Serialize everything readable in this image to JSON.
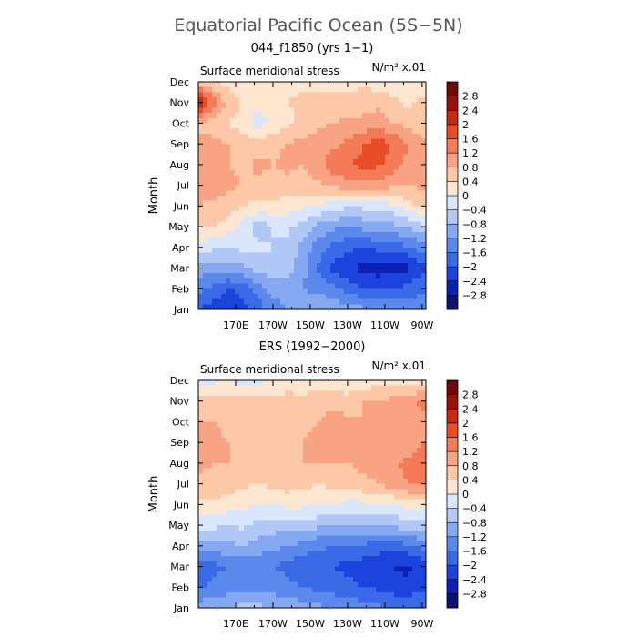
{
  "figure": {
    "title": "Equatorial Pacific Ocean (5S−5N)"
  },
  "palette": {
    "levels": [
      -2.8,
      -2.4,
      -2.0,
      -1.6,
      -1.2,
      -0.8,
      -0.4,
      0,
      0.4,
      0.8,
      1.2,
      1.6,
      2.0,
      2.4,
      2.8
    ],
    "level_labels": [
      "−2.8",
      "−2.4",
      "−2",
      "−1.6",
      "−1.2",
      "−0.8",
      "−0.4",
      "0",
      "0.4",
      "0.8",
      "1.2",
      "1.6",
      "2",
      "2.4",
      "2.8"
    ],
    "colors": [
      "#0a1272",
      "#0b21b6",
      "#1c44dd",
      "#3a6ae6",
      "#5b88eb",
      "#86a8f0",
      "#b1c7f6",
      "#dae6fb",
      "#fde6cf",
      "#fcc8a8",
      "#f8a383",
      "#f37b57",
      "#e84d27",
      "#c72a10",
      "#97100a",
      "#6e0707"
    ]
  },
  "chart_data": [
    {
      "type": "heatmap",
      "title": "044_f1850 (yrs 1−1)",
      "subtitle": "Surface meridional stress",
      "units_label": "N/m² x.01",
      "ylabel": "Month",
      "y_ticks": [
        "Jan",
        "Feb",
        "Mar",
        "Apr",
        "May",
        "Jun",
        "Jul",
        "Aug",
        "Sep",
        "Oct",
        "Nov",
        "Dec"
      ],
      "x_ticks": [
        "170E",
        "170W",
        "150W",
        "130W",
        "110W",
        "90W"
      ],
      "x_tick_lon": [
        170,
        190,
        210,
        230,
        250,
        270
      ],
      "xlim": [
        150,
        272
      ],
      "x_lon": [
        150,
        158,
        166,
        174,
        182,
        190,
        198,
        206,
        214,
        222,
        230,
        238,
        246,
        254,
        262,
        270
      ],
      "values": [
        [
          -2.0,
          -2.2,
          -2.4,
          -2.1,
          -1.8,
          -1.4,
          -1.2,
          -1.0,
          -0.8,
          -0.9,
          -1.0,
          -1.1,
          -1.2,
          -1.3,
          -1.4,
          -1.3
        ],
        [
          -1.4,
          -1.7,
          -2.0,
          -1.9,
          -1.4,
          -1.0,
          -1.0,
          -1.2,
          -1.3,
          -1.5,
          -1.8,
          -2.0,
          -2.1,
          -2.0,
          -1.9,
          -1.7
        ],
        [
          -1.0,
          -1.1,
          -1.0,
          -0.9,
          -0.6,
          -0.5,
          -0.6,
          -1.1,
          -1.6,
          -2.1,
          -2.4,
          -2.5,
          -2.6,
          -2.6,
          -2.5,
          -2.1
        ],
        [
          -0.2,
          -0.3,
          -0.4,
          -0.3,
          -0.3,
          -0.4,
          -0.5,
          -0.9,
          -1.4,
          -1.7,
          -1.9,
          -2.0,
          -1.9,
          -1.8,
          -1.7,
          -1.4
        ],
        [
          0.5,
          0.4,
          0.2,
          -0.2,
          -0.6,
          -0.4,
          -0.3,
          -0.6,
          -0.9,
          -1.1,
          -1.2,
          -1.1,
          -1.0,
          -0.9,
          -0.8,
          -0.5
        ],
        [
          0.8,
          0.7,
          0.6,
          0.4,
          0.3,
          0.3,
          0.2,
          0.1,
          0.0,
          -0.2,
          -0.3,
          -0.3,
          -0.2,
          -0.1,
          0.2,
          0.5
        ],
        [
          1.0,
          1.0,
          0.9,
          0.8,
          0.7,
          0.6,
          0.7,
          0.6,
          0.7,
          0.9,
          1.0,
          1.1,
          1.0,
          0.9,
          0.8,
          0.9
        ],
        [
          1.1,
          1.0,
          0.8,
          0.7,
          0.9,
          0.8,
          0.9,
          0.8,
          1.1,
          1.4,
          1.6,
          1.7,
          1.7,
          1.4,
          1.1,
          1.0
        ],
        [
          1.0,
          0.9,
          0.8,
          0.6,
          0.6,
          0.7,
          0.8,
          0.9,
          1.0,
          1.1,
          1.3,
          1.6,
          1.8,
          1.6,
          1.2,
          0.9
        ],
        [
          0.7,
          0.6,
          0.4,
          0.2,
          -0.2,
          0.1,
          0.3,
          0.5,
          0.7,
          0.8,
          0.9,
          0.9,
          1.0,
          0.8,
          0.7,
          0.5
        ],
        [
          2.6,
          1.4,
          0.6,
          0.4,
          0.1,
          0.2,
          0.4,
          0.5,
          0.6,
          0.6,
          0.5,
          0.6,
          0.7,
          0.5,
          0.3,
          0.5
        ],
        [
          0.5,
          0.4,
          0.3,
          0.2,
          0.2,
          0.3,
          0.3,
          0.3,
          0.2,
          0.2,
          0.3,
          0.3,
          0.2,
          0.2,
          0.3,
          0.2
        ]
      ]
    },
    {
      "type": "heatmap",
      "title": "ERS (1992−2000)",
      "subtitle": "Surface meridional stress",
      "units_label": "N/m² x.01",
      "ylabel": "Month",
      "y_ticks": [
        "Jan",
        "Feb",
        "Mar",
        "Apr",
        "May",
        "Jun",
        "Jul",
        "Aug",
        "Sep",
        "Oct",
        "Nov",
        "Dec"
      ],
      "x_ticks": [
        "170E",
        "170W",
        "150W",
        "130W",
        "110W",
        "90W"
      ],
      "x_tick_lon": [
        170,
        190,
        210,
        230,
        250,
        270
      ],
      "xlim": [
        150,
        272
      ],
      "x_lon": [
        150,
        158,
        166,
        174,
        182,
        190,
        198,
        206,
        214,
        222,
        230,
        238,
        246,
        254,
        262,
        270
      ],
      "values": [
        [
          -1.0,
          -0.9,
          -0.8,
          -0.6,
          -0.7,
          -0.8,
          -0.9,
          -1.0,
          -1.1,
          -1.2,
          -1.3,
          -1.4,
          -1.5,
          -1.6,
          -1.7,
          -1.6
        ],
        [
          -1.7,
          -1.5,
          -1.4,
          -1.3,
          -1.3,
          -1.4,
          -1.5,
          -1.6,
          -1.7,
          -1.8,
          -1.9,
          -2.0,
          -2.1,
          -2.2,
          -2.3,
          -2.1
        ],
        [
          -1.9,
          -1.7,
          -1.6,
          -1.5,
          -1.5,
          -1.6,
          -1.7,
          -1.9,
          -2.0,
          -2.0,
          -2.1,
          -2.2,
          -2.3,
          -2.4,
          -2.5,
          -2.3
        ],
        [
          -1.1,
          -1.0,
          -0.9,
          -0.8,
          -1.0,
          -1.1,
          -1.2,
          -1.3,
          -1.5,
          -1.6,
          -1.6,
          -1.7,
          -1.8,
          -1.8,
          -1.7,
          -1.5
        ],
        [
          -0.3,
          -0.3,
          -0.4,
          -0.3,
          -0.5,
          -0.6,
          -0.6,
          -0.7,
          -0.7,
          -0.8,
          -0.9,
          -0.8,
          -0.8,
          -0.7,
          -0.6,
          -0.5
        ],
        [
          0.3,
          0.3,
          0.2,
          0.1,
          0.0,
          0.0,
          0.1,
          0.1,
          0.1,
          0.0,
          -0.1,
          -0.1,
          0.0,
          0.0,
          0.1,
          0.2
        ],
        [
          0.7,
          0.7,
          0.6,
          0.5,
          0.4,
          0.5,
          0.6,
          0.5,
          0.4,
          0.5,
          0.6,
          0.7,
          0.8,
          1.0,
          1.2,
          1.3
        ],
        [
          0.9,
          0.8,
          0.8,
          0.7,
          0.6,
          0.6,
          0.7,
          0.8,
          0.8,
          0.8,
          0.8,
          0.9,
          0.9,
          1.1,
          1.3,
          1.4
        ],
        [
          1.3,
          0.9,
          0.8,
          0.7,
          0.6,
          0.7,
          0.8,
          0.8,
          0.9,
          0.9,
          0.8,
          0.8,
          0.8,
          0.8,
          0.9,
          1.2
        ],
        [
          0.8,
          0.8,
          0.7,
          0.7,
          0.7,
          0.7,
          0.6,
          0.7,
          0.8,
          0.9,
          0.9,
          0.8,
          0.8,
          0.9,
          1.0,
          1.1
        ],
        [
          0.5,
          0.5,
          0.5,
          0.6,
          0.6,
          0.6,
          0.6,
          0.6,
          0.7,
          0.7,
          0.6,
          0.8,
          0.8,
          0.9,
          1.0,
          1.3
        ],
        [
          -0.3,
          -0.1,
          0.0,
          -0.2,
          -0.1,
          0.0,
          0.1,
          0.0,
          0.1,
          0.1,
          0.0,
          0.1,
          0.2,
          0.2,
          0.1,
          0.2
        ]
      ]
    }
  ]
}
